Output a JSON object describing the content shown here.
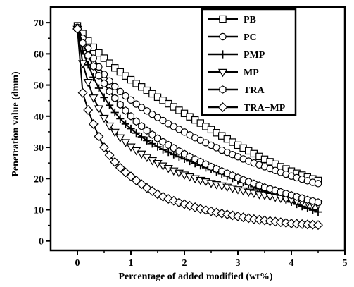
{
  "chart_data": {
    "type": "line",
    "xlabel": "Percentage of added modified (wt%)",
    "ylabel": "Penetration value (dmm)",
    "xlim": [
      -0.5,
      5
    ],
    "ylim": [
      -3,
      75
    ],
    "xticks": [
      0,
      1,
      2,
      3,
      4,
      5
    ],
    "yticks": [
      0,
      10,
      20,
      30,
      40,
      50,
      60,
      70
    ],
    "x_tick_labels": [
      "0",
      "1",
      "2",
      "3",
      "4",
      "5"
    ],
    "y_tick_labels": [
      "0",
      "10",
      "20",
      "30",
      "40",
      "50",
      "60",
      "70"
    ],
    "grid": false,
    "legend_position": "top-right",
    "x": [
      0,
      0.1,
      0.2,
      0.3,
      0.4,
      0.5,
      0.6,
      0.7,
      0.8,
      0.9,
      1.0,
      1.1,
      1.2,
      1.3,
      1.4,
      1.5,
      1.6,
      1.7,
      1.8,
      1.9,
      2.0,
      2.1,
      2.2,
      2.3,
      2.4,
      2.5,
      2.6,
      2.7,
      2.8,
      2.9,
      3.0,
      3.1,
      3.2,
      3.3,
      3.4,
      3.5,
      3.6,
      3.7,
      3.8,
      3.9,
      4.0,
      4.1,
      4.2,
      4.3,
      4.4,
      4.5
    ],
    "series": [
      {
        "name": "PB",
        "marker": "square",
        "values": [
          69.0,
          66.5,
          64.2,
          62.1,
          60.3,
          58.6,
          57.0,
          55.5,
          54.2,
          52.9,
          51.7,
          50.5,
          49.4,
          48.3,
          47.2,
          46.1,
          45.1,
          44.0,
          43.0,
          41.9,
          40.9,
          39.8,
          38.8,
          37.8,
          36.7,
          35.7,
          34.7,
          33.7,
          32.7,
          31.7,
          30.7,
          29.8,
          28.9,
          28.0,
          27.1,
          26.2,
          25.4,
          24.6,
          23.8,
          23.1,
          22.4,
          21.7,
          21.1,
          20.5,
          19.9,
          19.4
        ]
      },
      {
        "name": "PC",
        "marker": "circle",
        "values": [
          68.5,
          65.0,
          61.8,
          58.6,
          55.8,
          53.4,
          51.3,
          49.5,
          47.9,
          46.5,
          45.2,
          43.9,
          42.8,
          41.7,
          40.6,
          39.6,
          38.6,
          37.6,
          36.7,
          35.8,
          34.9,
          34.0,
          33.1,
          32.3,
          31.5,
          30.7,
          29.9,
          29.1,
          28.4,
          27.7,
          27.0,
          26.3,
          25.6,
          25.0,
          24.4,
          23.8,
          23.2,
          22.6,
          22.0,
          21.4,
          20.8,
          20.3,
          19.8,
          19.3,
          18.8,
          18.4
        ]
      },
      {
        "name": "PMP",
        "marker": "plus",
        "values": [
          68.0,
          61.0,
          56.5,
          52.5,
          49.0,
          46.0,
          43.5,
          41.2,
          39.2,
          37.5,
          36.0,
          34.6,
          33.4,
          32.2,
          31.2,
          30.2,
          29.3,
          28.5,
          27.7,
          27.0,
          26.3,
          25.6,
          24.9,
          24.2,
          23.5,
          22.9,
          22.2,
          21.5,
          20.8,
          20.1,
          19.4,
          18.8,
          18.1,
          17.4,
          16.7,
          16.0,
          15.3,
          14.6,
          13.9,
          13.2,
          12.5,
          11.8,
          11.1,
          10.5,
          9.9,
          9.3
        ]
      },
      {
        "name": "MP",
        "marker": "triangle-down",
        "values": [
          68.0,
          57.0,
          51.0,
          46.0,
          42.5,
          39.5,
          37.0,
          35.0,
          33.2,
          31.7,
          30.3,
          29.1,
          28.0,
          26.9,
          25.9,
          25.0,
          24.2,
          23.4,
          22.6,
          21.9,
          21.3,
          20.7,
          20.1,
          19.6,
          19.1,
          18.6,
          18.2,
          17.8,
          17.4,
          17.0,
          16.6,
          16.2,
          15.8,
          15.4,
          15.0,
          14.7,
          14.4,
          14.1,
          13.8,
          13.5,
          13.2,
          12.9,
          12.6,
          12.3,
          12.0,
          11.7
        ]
      },
      {
        "name": "TRA",
        "marker": "hexagon",
        "values": [
          68.0,
          63.5,
          59.5,
          56.0,
          53.0,
          50.5,
          48.0,
          45.8,
          43.7,
          41.8,
          40.0,
          38.3,
          36.8,
          35.4,
          34.1,
          32.9,
          31.8,
          30.8,
          29.8,
          28.8,
          27.9,
          27.0,
          26.2,
          25.4,
          24.6,
          23.8,
          23.1,
          22.4,
          21.7,
          21.0,
          20.3,
          19.6,
          19.0,
          18.4,
          17.8,
          17.2,
          16.7,
          16.2,
          15.7,
          15.2,
          14.7,
          14.2,
          13.7,
          13.2,
          12.8,
          12.4
        ]
      },
      {
        "name": "TRA+MP",
        "marker": "diamond",
        "values": [
          68.0,
          47.5,
          42.0,
          37.5,
          33.5,
          30.0,
          27.5,
          25.3,
          23.5,
          22.0,
          20.7,
          19.4,
          18.2,
          17.0,
          16.0,
          15.0,
          14.2,
          13.5,
          12.9,
          12.3,
          11.8,
          11.3,
          10.8,
          10.3,
          9.9,
          9.5,
          9.1,
          8.8,
          8.5,
          8.2,
          7.9,
          7.6,
          7.3,
          7.0,
          6.8,
          6.6,
          6.4,
          6.2,
          6.0,
          5.8,
          5.6,
          5.5,
          5.4,
          5.3,
          5.2,
          5.1
        ]
      }
    ]
  }
}
